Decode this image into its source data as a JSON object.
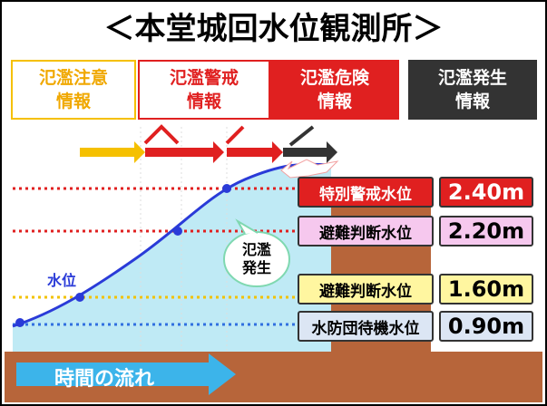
{
  "title": "＜本堂城回水位観測所＞",
  "stages": [
    {
      "lines": [
        "氾濫注意",
        "情報"
      ]
    },
    {
      "lines": [
        "氾濫警戒",
        "情報"
      ]
    },
    {
      "lines": [
        "氾濫危険",
        "情報"
      ]
    },
    {
      "lines": [
        "氾濫発生",
        "情報"
      ]
    }
  ],
  "levels": [
    {
      "name": "特別警戒水位",
      "value": "2.40m"
    },
    {
      "name": "避難判断水位",
      "value": "2.20m"
    },
    {
      "name": "避難判断水位",
      "value": "1.60m"
    },
    {
      "name": "水防団待機水位",
      "value": "0.90m"
    }
  ],
  "water_level_label": "水位",
  "flood_label": [
    "氾濫",
    "発生"
  ],
  "time_label": "時間の流れ"
}
